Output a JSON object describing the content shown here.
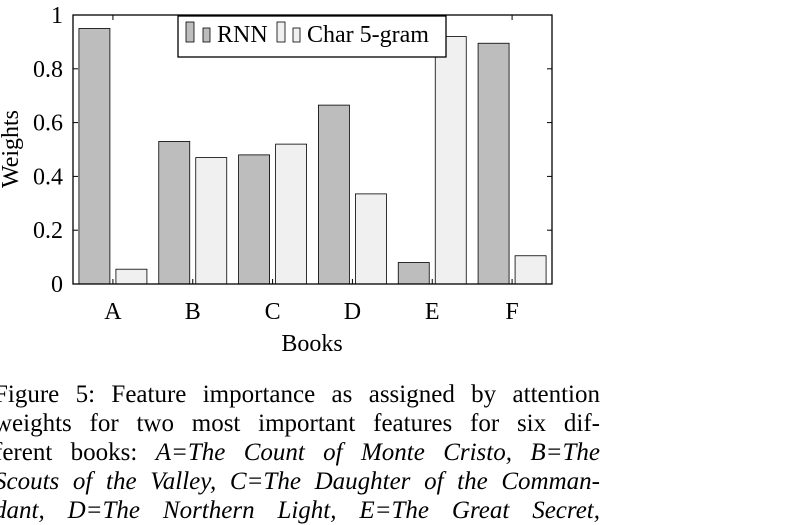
{
  "chart_data": {
    "type": "bar",
    "categories": [
      "A",
      "B",
      "C",
      "D",
      "E",
      "F"
    ],
    "series": [
      {
        "name": "RNN",
        "values": [
          0.95,
          0.53,
          0.48,
          0.665,
          0.08,
          0.895
        ],
        "color": "#bdbdbd"
      },
      {
        "name": "Char 5-gram",
        "values": [
          0.055,
          0.47,
          0.52,
          0.335,
          0.92,
          0.105
        ],
        "color": "#f0f0f0"
      }
    ],
    "xlabel": "Books",
    "ylabel": "Weights",
    "ylim": [
      0,
      1
    ],
    "yticks": [
      "0",
      "0.2",
      "0.4",
      "0.6",
      "0.8",
      "1"
    ],
    "legend_position": "top-center",
    "grid": false
  },
  "caption": {
    "line1": "Figure 5:  Feature importance as assigned by attention",
    "line2": "weights for two most important features for six dif-",
    "line3_a": "ferent books: ",
    "line3_b": "A=The Count of Monte Cristo, B=The",
    "line4": "Scouts of the Valley, C=The Daughter of the Comman-",
    "line5": "dant, D=The Northern Light, E=The Great Secret,"
  }
}
